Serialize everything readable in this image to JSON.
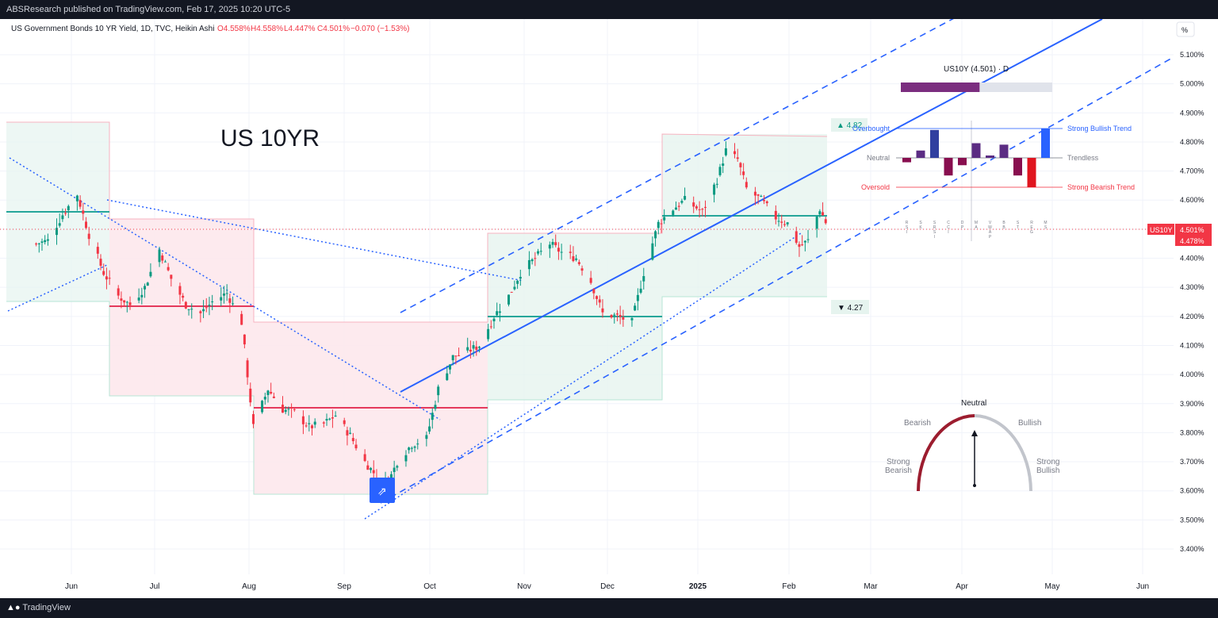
{
  "header": {
    "publisher_text": "ABSResearch published on TradingView.com, Feb 17, 2025 10:20 UTC-5"
  },
  "symbol_line": {
    "title": "US Government Bonds 10 YR Yield, 1D, TVC, Heikin Ashi",
    "open": "O4.558%",
    "high": "H4.558%",
    "low": "L4.447%",
    "close": "C4.501%",
    "change": "−0.070 (−1.53%)"
  },
  "annotation_title": "US 10YR",
  "percent_button": "%",
  "footer": {
    "brand": "TradingView"
  },
  "price_labels": {
    "symbol": "US10Y",
    "last": "4.501%",
    "second": "4.478%"
  },
  "range_labels": {
    "upper": "▲ 4.82",
    "lower": "▼ 4.27"
  },
  "indicator": {
    "title": "US10Y (4.501) · D",
    "score_fraction": 0.52,
    "levels": [
      {
        "left": "Overbought",
        "right": "Strong Bullish Trend",
        "color": "#2962ff"
      },
      {
        "left": "Neutral",
        "right": "Trendless",
        "color": "#787b86"
      },
      {
        "left": "Oversold",
        "right": "Strong Bearish Trend",
        "color": "#f23645"
      }
    ],
    "bars": [
      {
        "label": "RSI",
        "value": -0.15,
        "color": "#880e4f"
      },
      {
        "label": "SK",
        "value": 0.25,
        "color": "#5b2c83"
      },
      {
        "label": "SRSI",
        "value": 0.95,
        "color": "#303f9f"
      },
      {
        "label": "CCI",
        "value": -0.6,
        "color": "#880e4f"
      },
      {
        "label": "DP",
        "value": -0.25,
        "color": "#880e4f"
      },
      {
        "label": "MA",
        "value": 0.5,
        "color": "#5b2c83"
      },
      {
        "label": "VWAP",
        "value": 0.0,
        "color": "#5b2c83"
      },
      {
        "label": "BB",
        "value": 0.45,
        "color": "#5b2c83"
      },
      {
        "label": "ST",
        "value": -0.6,
        "color": "#880e4f"
      },
      {
        "label": "REG",
        "value": -1.0,
        "color": "#e0151f"
      },
      {
        "label": "MS",
        "value": 1.0,
        "color": "#2962ff"
      }
    ]
  },
  "gauge": {
    "labels": {
      "neutral": "Neutral",
      "bearish": "Bearish",
      "bullish": "Bullish",
      "strong_bearish": [
        "Strong",
        "Bearish"
      ],
      "strong_bullish": [
        "Strong",
        "Bullish"
      ]
    },
    "value": 0.0
  },
  "colors": {
    "up": "#089981",
    "down": "#f23645",
    "trend": "#2962ff"
  },
  "chart_data": {
    "type": "candlestick",
    "title": "US Government Bonds 10 YR Yield, 1D, TVC, Heikin Ashi",
    "x_ticks": [
      "Jun",
      "Jul",
      "Aug",
      "Sep",
      "Oct",
      "Nov",
      "Dec",
      "2025",
      "Feb",
      "Mar",
      "Apr",
      "May",
      "Jun"
    ],
    "y_ticks": [
      "5.100%",
      "5.000%",
      "4.900%",
      "4.800%",
      "4.700%",
      "4.600%",
      "4.500%",
      "4.400%",
      "4.300%",
      "4.200%",
      "4.100%",
      "4.000%",
      "3.900%",
      "3.800%",
      "3.700%",
      "3.600%",
      "3.500%",
      "3.400%"
    ],
    "ylim": [
      3.35,
      5.15
    ],
    "series": [
      {
        "name": "Heikin Ashi close",
        "points": [
          [
            "May 20",
            4.45
          ],
          [
            "May 24",
            4.46
          ],
          [
            "May 29",
            4.55
          ],
          [
            "Jun 3",
            4.62
          ],
          [
            "Jun 7",
            4.48
          ],
          [
            "Jun 12",
            4.35
          ],
          [
            "Jun 17",
            4.27
          ],
          [
            "Jun 21",
            4.24
          ],
          [
            "Jun 26",
            4.3
          ],
          [
            "Jul 1",
            4.43
          ],
          [
            "Jul 5",
            4.33
          ],
          [
            "Jul 10",
            4.24
          ],
          [
            "Jul 15",
            4.21
          ],
          [
            "Jul 19",
            4.25
          ],
          [
            "Jul 24",
            4.28
          ],
          [
            "Jul 29",
            4.18
          ],
          [
            "Aug 2",
            3.82
          ],
          [
            "Aug 7",
            3.95
          ],
          [
            "Aug 12",
            3.88
          ],
          [
            "Aug 16",
            3.87
          ],
          [
            "Aug 21",
            3.82
          ],
          [
            "Aug 26",
            3.83
          ],
          [
            "Aug 30",
            3.86
          ],
          [
            "Sep 4",
            3.79
          ],
          [
            "Sep 9",
            3.7
          ],
          [
            "Sep 13",
            3.65
          ],
          [
            "Sep 17",
            3.63
          ],
          [
            "Sep 20",
            3.7
          ],
          [
            "Sep 25",
            3.76
          ],
          [
            "Sep 30",
            3.78
          ],
          [
            "Oct 4",
            3.95
          ],
          [
            "Oct 9",
            4.06
          ],
          [
            "Oct 14",
            4.08
          ],
          [
            "Oct 18",
            4.1
          ],
          [
            "Oct 23",
            4.2
          ],
          [
            "Oct 28",
            4.27
          ],
          [
            "Nov 1",
            4.35
          ],
          [
            "Nov 6",
            4.4
          ],
          [
            "Nov 11",
            4.45
          ],
          [
            "Nov 15",
            4.42
          ],
          [
            "Nov 20",
            4.4
          ],
          [
            "Nov 25",
            4.32
          ],
          [
            "Nov 29",
            4.21
          ],
          [
            "Dec 4",
            4.2
          ],
          [
            "Dec 9",
            4.18
          ],
          [
            "Dec 13",
            4.35
          ],
          [
            "Dec 18",
            4.52
          ],
          [
            "Dec 23",
            4.57
          ],
          [
            "Dec 27",
            4.6
          ],
          [
            "Jan 2",
            4.56
          ],
          [
            "Jan 7",
            4.67
          ],
          [
            "Jan 10",
            4.77
          ],
          [
            "Jan 14",
            4.74
          ],
          [
            "Jan 17",
            4.64
          ],
          [
            "Jan 22",
            4.6
          ],
          [
            "Jan 27",
            4.54
          ],
          [
            "Jan 31",
            4.52
          ],
          [
            "Feb 4",
            4.44
          ],
          [
            "Feb 7",
            4.46
          ],
          [
            "Feb 11",
            4.57
          ],
          [
            "Feb 14",
            4.5
          ]
        ]
      }
    ]
  }
}
